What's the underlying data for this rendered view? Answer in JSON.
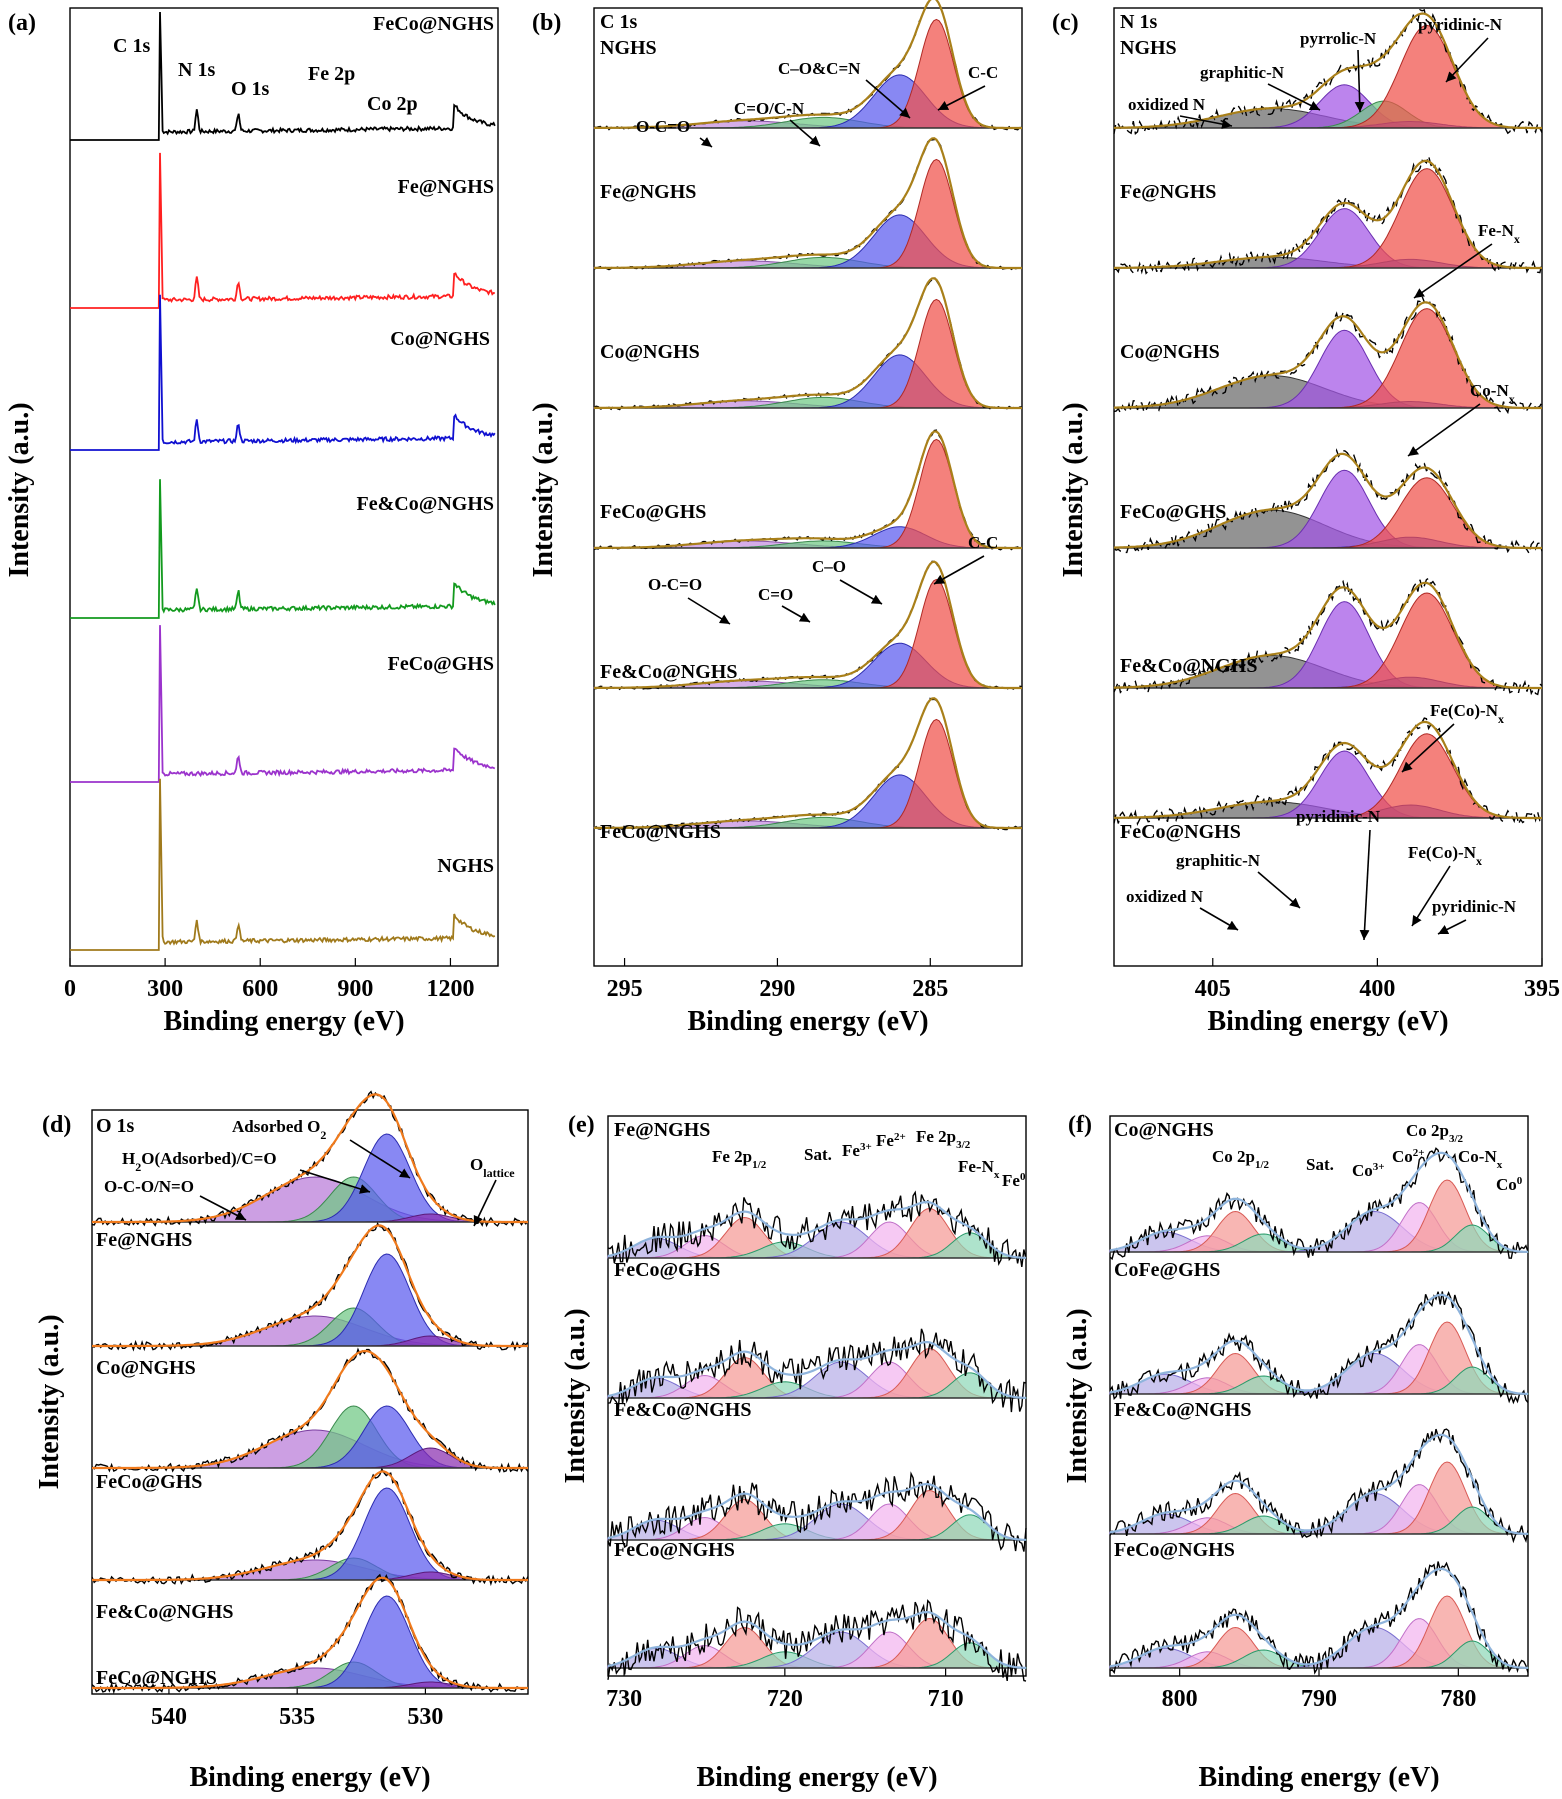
{
  "figure": {
    "panels": [
      {
        "id": "a",
        "letter": "(a)",
        "x_label": "Binding energy (eV)",
        "y_label": "Intensity (a.u.)",
        "x_ticks": [
          "0",
          "300",
          "600",
          "900",
          "1200"
        ],
        "peak_labels": [
          "C 1s",
          "N 1s",
          "O 1s",
          "Fe 2p",
          "Co 2p"
        ],
        "traces": [
          {
            "name": "FeCo@NGHS",
            "color": "#000000"
          },
          {
            "name": "Fe@NGHS",
            "color": "#ff2020"
          },
          {
            "name": "Co@NGHS",
            "color": "#1010d0"
          },
          {
            "name": "Fe&Co@NGHS",
            "color": "#139a1e"
          },
          {
            "name": "FeCo@GHS",
            "color": "#9b33cc"
          },
          {
            "name": "NGHS",
            "color": "#a07a1c"
          }
        ]
      },
      {
        "id": "b",
        "letter": "(b)",
        "x_label": "Binding energy (eV)",
        "y_label": "Intensity (a.u.)",
        "x_ticks": [
          "295",
          "290",
          "285"
        ],
        "header": [
          "C 1s",
          "NGHS"
        ],
        "traces": [
          "Fe@NGHS",
          "Co@NGHS",
          "FeCo@GHS",
          "Fe&Co@NGHS",
          "FeCo@NGHS"
        ],
        "annotations_top": [
          "O-C=O",
          "C=O/C-N",
          "C–O&C=N",
          "C-C"
        ],
        "annotations_mid": [
          "O-C=O",
          "C=O",
          "C–O",
          "C-C"
        ]
      },
      {
        "id": "c",
        "letter": "(c)",
        "x_label": "Binding energy (eV)",
        "y_label": "Intensity (a.u.)",
        "x_ticks": [
          "405",
          "400",
          "395"
        ],
        "header": [
          "N 1s",
          "NGHS"
        ],
        "traces": [
          "Fe@NGHS",
          "Co@NGHS",
          "FeCo@GHS",
          "Fe&Co@NGHS",
          "FeCo@NGHS"
        ],
        "annotations_top": [
          "oxidized N",
          "graphitic-N",
          "pyrrolic-N",
          "pyridinic-N"
        ],
        "annotations_mid": [
          "Fe-N",
          "Co-N",
          "Fe(Co)-N"
        ],
        "annotations_bottom": [
          "oxidized N",
          "graphitic-N",
          "pyridinic-N",
          "Fe(Co)-N",
          "pyridinic-N"
        ],
        "subscript_x": "x"
      },
      {
        "id": "d",
        "letter": "(d)",
        "x_label": "Binding energy (eV)",
        "y_label": "Intensity (a.u.)",
        "x_ticks": [
          "540",
          "535",
          "530"
        ],
        "header": "O 1s",
        "traces": [
          "Fe@NGHS",
          "Co@NGHS",
          "FeCo@GHS",
          "Fe&Co@NGHS",
          "FeCo@NGHS"
        ],
        "annotations": [
          "Adsorbed O",
          "H",
          "O(Adsorbed)/C=O",
          "O-C-O/N=O",
          "O"
        ],
        "sub_2": "2",
        "sub_lattice": "lattice"
      },
      {
        "id": "e",
        "letter": "(e)",
        "x_label": "Binding energy (eV)",
        "y_label": "Intensity (a.u.)",
        "x_ticks": [
          "730",
          "720",
          "710"
        ],
        "traces": [
          "Fe@NGHS",
          "FeCo@GHS",
          "Fe&Co@NGHS",
          "FeCo@NGHS"
        ],
        "annotations": [
          "Fe 2p",
          "Sat.",
          "Fe",
          "Fe 2p",
          "Fe-N",
          "Fe"
        ],
        "sub_12": "1/2",
        "sub_32": "3/2",
        "sup_3": "3+",
        "sup_2": "2+",
        "sup_0": "0",
        "sub_x": "x"
      },
      {
        "id": "f",
        "letter": "(f)",
        "x_label": "Binding energy (eV)",
        "y_label": "Intensity (a.u.)",
        "x_ticks": [
          "800",
          "790",
          "780"
        ],
        "traces": [
          "Co@NGHS",
          "CoFe@GHS",
          "Fe&Co@NGHS",
          "FeCo@NGHS"
        ],
        "annotations": [
          "Co 2p",
          "Sat.",
          "Co",
          "Co 2p",
          "Co-N",
          "Co"
        ],
        "sub_12": "1/2",
        "sub_32": "3/2",
        "sup_3": "3+",
        "sup_2": "2+",
        "sup_0": "0",
        "sub_x": "x"
      }
    ]
  },
  "chart_data": [
    {
      "type": "line",
      "title": "(a)",
      "xlabel": "Binding energy (eV)",
      "ylabel": "Intensity (a.u.)",
      "xlim": [
        0,
        1350
      ],
      "series": [
        {
          "name": "FeCo@NGHS",
          "peaks_eV": [
            285,
            400,
            531,
            711,
            780
          ]
        },
        {
          "name": "Fe@NGHS",
          "peaks_eV": [
            285,
            400,
            531,
            711
          ]
        },
        {
          "name": "Co@NGHS",
          "peaks_eV": [
            285,
            400,
            531,
            780
          ]
        },
        {
          "name": "Fe&Co@NGHS",
          "peaks_eV": [
            285,
            400,
            531,
            711,
            780
          ]
        },
        {
          "name": "FeCo@GHS",
          "peaks_eV": [
            285,
            531
          ]
        },
        {
          "name": "NGHS",
          "peaks_eV": [
            285,
            400,
            531
          ]
        }
      ],
      "colors": {
        "FeCo@NGHS": "#000000",
        "Fe@NGHS": "#ff2020",
        "Co@NGHS": "#1010d0",
        "Fe&Co@NGHS": "#139a1e",
        "FeCo@GHS": "#9b33cc",
        "NGHS": "#a07a1c"
      }
    },
    {
      "type": "area",
      "title": "(b)",
      "xlabel": "Binding energy (eV)",
      "ylabel": "Intensity (a.u.)",
      "xlim": [
        296,
        282
      ],
      "components": [
        {
          "name": "C-C",
          "center_eV": 284.8,
          "color": "#f0504a"
        },
        {
          "name": "C–O&C=N",
          "center_eV": 286.0,
          "color": "#5a5aee"
        },
        {
          "name": "C=O/C-N",
          "center_eV": 288.5,
          "color": "#5fbb74"
        },
        {
          "name": "O-C=O",
          "center_eV": 291.0,
          "color": "#b97ad8"
        }
      ],
      "series": [
        "NGHS",
        "Fe@NGHS",
        "Co@NGHS",
        "FeCo@GHS",
        "Fe&Co@NGHS",
        "FeCo@NGHS"
      ]
    },
    {
      "type": "area",
      "title": "(c)",
      "xlabel": "Binding energy (eV)",
      "ylabel": "Intensity (a.u.)",
      "xlim": [
        408,
        395
      ],
      "components": [
        {
          "name": "pyridinic-N",
          "center_eV": 398.5,
          "color": "#f0504a"
        },
        {
          "name": "pyrrolic-N",
          "center_eV": 399.8,
          "color": "#5fbb74"
        },
        {
          "name": "graphitic-N",
          "center_eV": 401.0,
          "color": "#a255e6"
        },
        {
          "name": "oxidized N",
          "center_eV": 403.0,
          "color": "#5e5e5e"
        },
        {
          "name": "Fe(Co)-N",
          "center_eV": 399.0,
          "color": "#4646dd"
        }
      ],
      "series": [
        "NGHS",
        "Fe@NGHS",
        "Co@NGHS",
        "FeCo@GHS",
        "Fe&Co@NGHS",
        "FeCo@NGHS"
      ]
    },
    {
      "type": "area",
      "title": "(d)",
      "xlabel": "Binding energy (eV)",
      "ylabel": "Intensity (a.u.)",
      "xlim": [
        543,
        526
      ],
      "components": [
        {
          "name": "O lattice",
          "center_eV": 529.8,
          "color": "#8a2fb0"
        },
        {
          "name": "Adsorbed O2",
          "center_eV": 531.5,
          "color": "#5a5aee"
        },
        {
          "name": "H2O(Adsorbed)/C=O",
          "center_eV": 532.8,
          "color": "#5fbb74"
        },
        {
          "name": "O-C-O/N=O",
          "center_eV": 534.2,
          "color": "#b97ad8"
        }
      ],
      "series": [
        "NGHS",
        "Fe@NGHS",
        "Co@NGHS",
        "FeCo@GHS",
        "Fe&Co@NGHS",
        "FeCo@NGHS"
      ]
    },
    {
      "type": "area",
      "title": "(e)",
      "xlabel": "Binding energy (eV)",
      "ylabel": "Intensity (a.u.)",
      "xlim": [
        731,
        705
      ],
      "components": [
        {
          "name": "Fe0",
          "center_eV": 708.0
        },
        {
          "name": "Fe-Nx",
          "center_eV": 709.5
        },
        {
          "name": "Fe2+",
          "center_eV": 711.0
        },
        {
          "name": "Fe3+",
          "center_eV": 713.5
        },
        {
          "name": "Sat.",
          "center_eV": 717.0
        }
      ],
      "series": [
        "Fe@NGHS",
        "FeCo@GHS",
        "Fe&Co@NGHS",
        "FeCo@NGHS"
      ]
    },
    {
      "type": "area",
      "title": "(f)",
      "xlabel": "Binding energy (eV)",
      "ylabel": "Intensity (a.u.)",
      "xlim": [
        805,
        775
      ],
      "components": [
        {
          "name": "Co0",
          "center_eV": 778.0
        },
        {
          "name": "Co-Nx",
          "center_eV": 779.5
        },
        {
          "name": "Co2+",
          "center_eV": 781.0
        },
        {
          "name": "Co3+",
          "center_eV": 783.0
        },
        {
          "name": "Sat.",
          "center_eV": 786.0
        }
      ],
      "series": [
        "Co@NGHS",
        "CoFe@GHS",
        "Fe&Co@NGHS",
        "FeCo@NGHS"
      ]
    }
  ]
}
